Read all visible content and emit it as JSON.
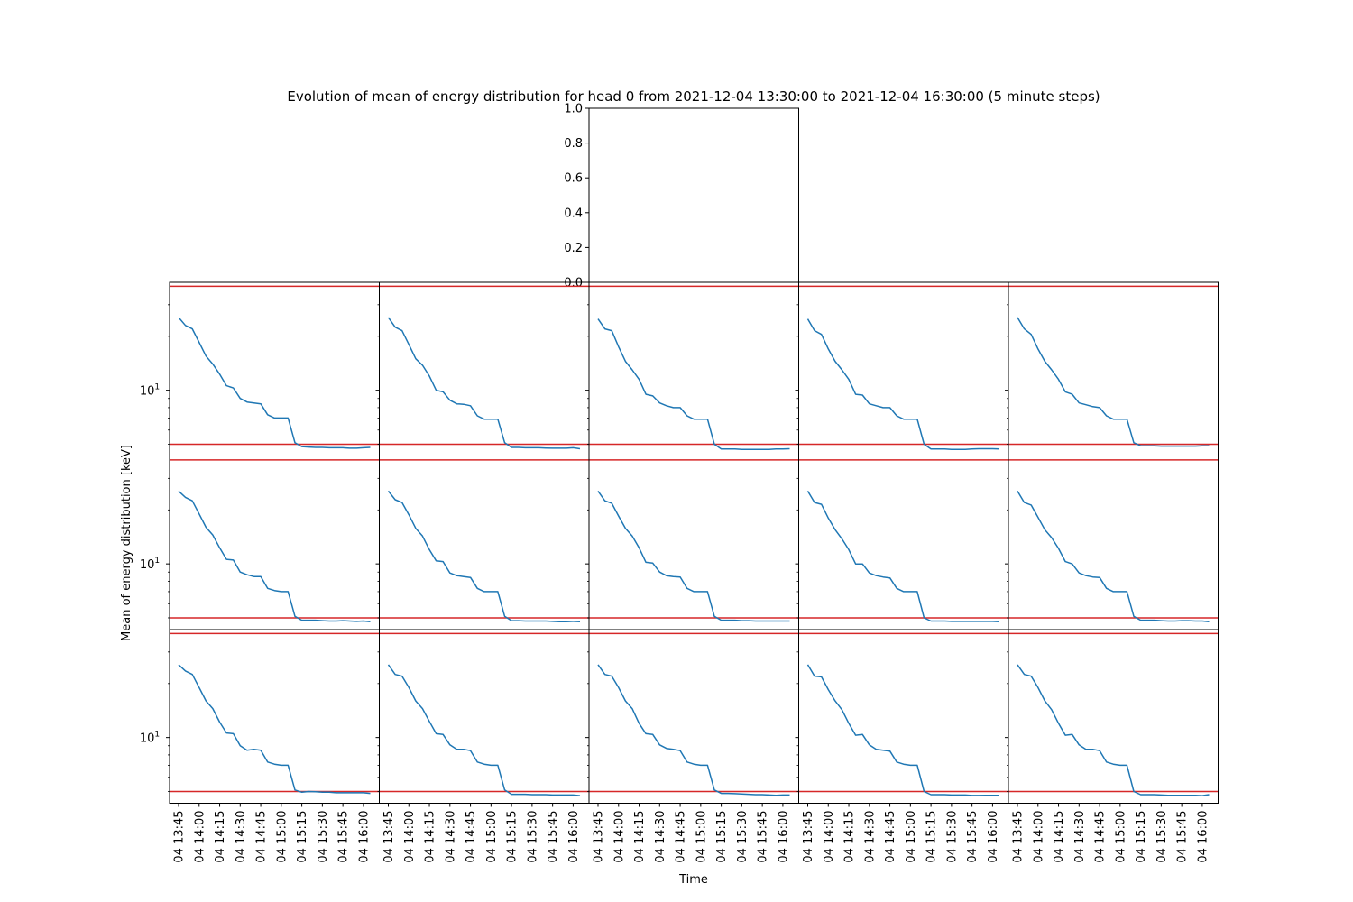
{
  "figure": {
    "title": "Evolution of mean of energy distribution for head 0 from 2021-12-04 13:30:00 to 2021-12-04 16:30:00 (5 minute steps)",
    "xlabel": "Time",
    "ylabel": "Mean of energy distribution [keV]"
  },
  "chart_data": {
    "type": "line",
    "title": "Evolution of mean of energy distribution for head 0 from 2021-12-04 13:30:00 to 2021-12-04 16:30:00 (5 minute steps)",
    "xlabel": "Time",
    "ylabel": "Mean of energy distribution [keV]",
    "x": [
      "13:45",
      "13:50",
      "13:55",
      "14:00",
      "14:05",
      "14:10",
      "14:15",
      "14:20",
      "14:25",
      "14:30",
      "14:35",
      "14:40",
      "14:45",
      "14:50",
      "14:55",
      "15:00",
      "15:05",
      "15:10",
      "15:15",
      "15:20",
      "15:25",
      "15:30",
      "15:35",
      "15:40",
      "15:45",
      "15:50",
      "15:55",
      "16:00",
      "16:05"
    ],
    "x_tick_labels": [
      "04 13:45",
      "04 14:00",
      "04 14:15",
      "04 14:30",
      "04 14:45",
      "04 15:00",
      "04 15:15",
      "04 15:30",
      "04 15:45",
      "04 16:00"
    ],
    "y_scale": "log",
    "ylim": [
      4.3,
      40
    ],
    "y_tick_labels": [
      "10^1"
    ],
    "reference_lines": [
      5.0,
      38.0
    ],
    "grid": false,
    "series_color": "#1f77b4",
    "reference_line_color": "#d62728",
    "empty_panel": {
      "yticks": [
        "0.0",
        "0.2",
        "0.4",
        "0.6",
        "0.8",
        "1.0"
      ],
      "ylim": [
        0,
        1
      ]
    },
    "panels": [
      {
        "row": 0,
        "col": 0,
        "values": [
          25.5,
          23.0,
          22.0,
          18.5,
          15.5,
          14.0,
          12.3,
          10.6,
          10.3,
          9.0,
          8.6,
          8.5,
          8.4,
          7.3,
          7.0,
          7.0,
          7.0,
          5.1,
          4.85,
          4.82,
          4.8,
          4.8,
          4.78,
          4.78,
          4.78,
          4.75,
          4.75,
          4.78,
          4.8
        ]
      },
      {
        "row": 0,
        "col": 1,
        "values": [
          25.5,
          22.5,
          21.5,
          18.0,
          15.0,
          13.8,
          12.0,
          10.0,
          9.8,
          8.8,
          8.4,
          8.35,
          8.2,
          7.2,
          6.9,
          6.9,
          6.9,
          5.1,
          4.8,
          4.8,
          4.78,
          4.78,
          4.78,
          4.76,
          4.75,
          4.75,
          4.75,
          4.78,
          4.72
        ]
      },
      {
        "row": 0,
        "col": 2,
        "values": [
          25.0,
          22.0,
          21.5,
          17.5,
          14.5,
          13.0,
          11.5,
          9.5,
          9.3,
          8.5,
          8.2,
          8.0,
          8.0,
          7.2,
          6.9,
          6.9,
          6.9,
          5.0,
          4.7,
          4.7,
          4.7,
          4.68,
          4.68,
          4.68,
          4.68,
          4.68,
          4.7,
          4.7,
          4.72
        ]
      },
      {
        "row": 0,
        "col": 3,
        "values": [
          25.0,
          21.5,
          20.5,
          17.0,
          14.5,
          13.0,
          11.5,
          9.5,
          9.4,
          8.4,
          8.2,
          8.0,
          8.0,
          7.2,
          6.9,
          6.9,
          6.9,
          5.0,
          4.7,
          4.7,
          4.7,
          4.68,
          4.68,
          4.68,
          4.7,
          4.72,
          4.72,
          4.72,
          4.7
        ]
      },
      {
        "row": 0,
        "col": 4,
        "values": [
          25.5,
          22.0,
          20.5,
          17.0,
          14.5,
          13.0,
          11.5,
          9.8,
          9.5,
          8.5,
          8.3,
          8.1,
          8.0,
          7.2,
          6.9,
          6.9,
          6.9,
          5.1,
          4.9,
          4.9,
          4.9,
          4.88,
          4.88,
          4.88,
          4.88,
          4.88,
          4.88,
          4.9,
          4.9
        ]
      },
      {
        "row": 1,
        "col": 0,
        "values": [
          25.5,
          23.5,
          22.5,
          19.0,
          16.0,
          14.5,
          12.3,
          10.6,
          10.5,
          9.0,
          8.7,
          8.5,
          8.5,
          7.3,
          7.1,
          7.0,
          7.0,
          5.1,
          4.85,
          4.85,
          4.85,
          4.82,
          4.8,
          4.8,
          4.82,
          4.8,
          4.78,
          4.8,
          4.76
        ]
      },
      {
        "row": 1,
        "col": 1,
        "values": [
          25.5,
          22.8,
          22.0,
          18.8,
          15.8,
          14.3,
          12.0,
          10.4,
          10.3,
          8.9,
          8.6,
          8.5,
          8.4,
          7.3,
          7.0,
          7.0,
          7.0,
          5.1,
          4.82,
          4.82,
          4.8,
          4.8,
          4.8,
          4.8,
          4.78,
          4.76,
          4.76,
          4.78,
          4.76
        ]
      },
      {
        "row": 1,
        "col": 2,
        "values": [
          25.5,
          22.5,
          21.8,
          18.5,
          15.8,
          14.3,
          12.3,
          10.2,
          10.1,
          9.0,
          8.6,
          8.5,
          8.45,
          7.3,
          7.0,
          7.0,
          7.0,
          5.1,
          4.85,
          4.85,
          4.85,
          4.82,
          4.82,
          4.8,
          4.8,
          4.8,
          4.8,
          4.8,
          4.8
        ]
      },
      {
        "row": 1,
        "col": 3,
        "values": [
          25.5,
          22.0,
          21.5,
          18.0,
          15.5,
          13.8,
          12.0,
          10.0,
          10.0,
          8.9,
          8.6,
          8.45,
          8.35,
          7.3,
          7.0,
          7.0,
          7.0,
          5.0,
          4.8,
          4.8,
          4.8,
          4.78,
          4.78,
          4.78,
          4.78,
          4.78,
          4.78,
          4.78,
          4.76
        ]
      },
      {
        "row": 1,
        "col": 4,
        "values": [
          25.5,
          22.0,
          21.3,
          18.2,
          15.5,
          14.0,
          12.2,
          10.3,
          10.0,
          8.9,
          8.6,
          8.45,
          8.4,
          7.3,
          7.0,
          7.0,
          7.0,
          5.1,
          4.85,
          4.85,
          4.85,
          4.82,
          4.8,
          4.8,
          4.82,
          4.82,
          4.8,
          4.8,
          4.76
        ]
      },
      {
        "row": 2,
        "col": 0,
        "values": [
          25.5,
          23.5,
          22.5,
          19.0,
          16.0,
          14.5,
          12.2,
          10.6,
          10.5,
          9.0,
          8.5,
          8.6,
          8.5,
          7.3,
          7.1,
          7.0,
          7.0,
          5.1,
          4.95,
          5.0,
          4.98,
          4.95,
          4.95,
          4.92,
          4.92,
          4.92,
          4.92,
          4.92,
          4.88
        ]
      },
      {
        "row": 2,
        "col": 1,
        "values": [
          25.5,
          22.5,
          22.0,
          19.0,
          16.0,
          14.5,
          12.3,
          10.5,
          10.4,
          9.1,
          8.6,
          8.6,
          8.45,
          7.3,
          7.1,
          7.0,
          7.0,
          5.1,
          4.82,
          4.82,
          4.82,
          4.8,
          4.8,
          4.8,
          4.78,
          4.78,
          4.78,
          4.78,
          4.74
        ]
      },
      {
        "row": 2,
        "col": 2,
        "values": [
          25.5,
          22.5,
          22.0,
          19.0,
          16.0,
          14.5,
          12.0,
          10.5,
          10.4,
          9.1,
          8.7,
          8.6,
          8.45,
          7.3,
          7.1,
          7.0,
          7.0,
          5.1,
          4.88,
          4.88,
          4.86,
          4.84,
          4.82,
          4.8,
          4.8,
          4.78,
          4.76,
          4.78,
          4.78
        ]
      },
      {
        "row": 2,
        "col": 3,
        "values": [
          25.5,
          22.0,
          21.8,
          18.5,
          16.0,
          14.3,
          12.0,
          10.3,
          10.4,
          9.1,
          8.6,
          8.5,
          8.4,
          7.3,
          7.1,
          7.0,
          7.0,
          5.0,
          4.8,
          4.8,
          4.8,
          4.78,
          4.78,
          4.78,
          4.75,
          4.75,
          4.76,
          4.76,
          4.76
        ]
      },
      {
        "row": 2,
        "col": 4,
        "values": [
          25.5,
          22.5,
          22.0,
          19.0,
          16.0,
          14.3,
          12.0,
          10.3,
          10.4,
          9.1,
          8.6,
          8.6,
          8.45,
          7.3,
          7.1,
          7.0,
          7.0,
          5.0,
          4.8,
          4.8,
          4.8,
          4.78,
          4.76,
          4.76,
          4.76,
          4.76,
          4.76,
          4.74,
          4.8
        ]
      }
    ]
  }
}
